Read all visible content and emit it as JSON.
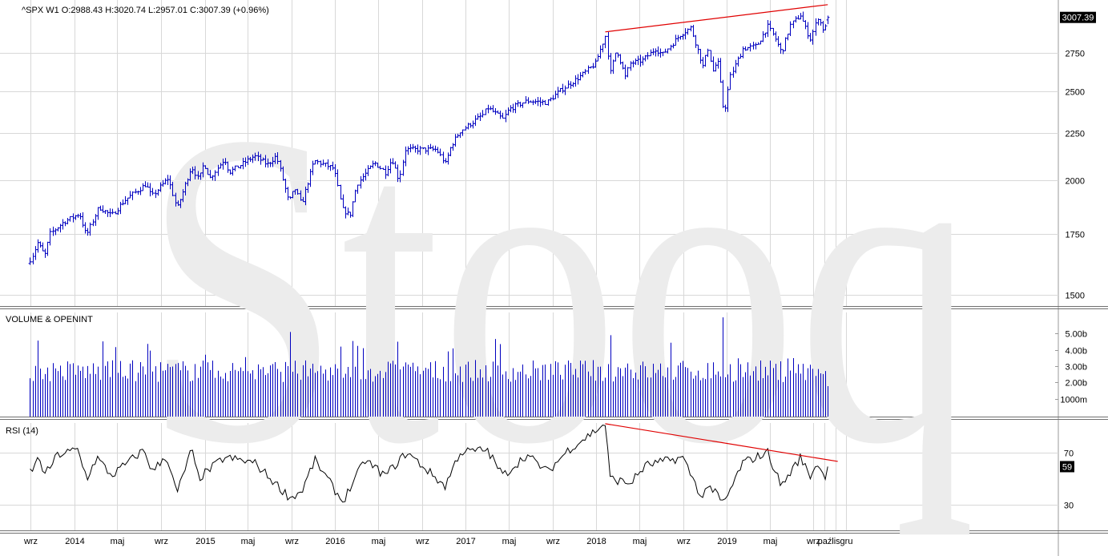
{
  "header": {
    "symbol": "^SPX",
    "interval": "W1",
    "ohlc_text": "O:2988.43  H:3020.74  L:2957.01  C:3007.39  (+0.96%)"
  },
  "watermark": "Stooq",
  "colors": {
    "price": "#0000c0",
    "volume": "#0000c0",
    "rsi": "#000000",
    "trendline": "#e00000",
    "grid": "#d8d8d8"
  },
  "chart_data": [
    {
      "type": "ohlc",
      "panel": "price",
      "title": "^SPX W1",
      "y_scale": "log",
      "ylim": [
        1480,
        3110
      ],
      "y_ticks": [
        1500,
        1750,
        2000,
        2250,
        2500,
        2750
      ],
      "last_value_label": "3007.39",
      "last": {
        "open": 2988.43,
        "high": 3020.74,
        "low": 2957.01,
        "close": 3007.39,
        "change_pct": 0.96
      },
      "weeks_start": "2013-08-30",
      "weeks_end": "2019-10-11",
      "close_anchors": [
        [
          "2013-09-01",
          1640
        ],
        [
          "2013-09-20",
          1710
        ],
        [
          "2013-10-10",
          1655
        ],
        [
          "2013-10-25",
          1750
        ],
        [
          "2013-12-01",
          1800
        ],
        [
          "2014-01-15",
          1840
        ],
        [
          "2014-02-03",
          1740
        ],
        [
          "2014-03-10",
          1870
        ],
        [
          "2014-04-15",
          1830
        ],
        [
          "2014-05-20",
          1900
        ],
        [
          "2014-07-20",
          1980
        ],
        [
          "2014-08-05",
          1920
        ],
        [
          "2014-09-20",
          2010
        ],
        [
          "2014-10-15",
          1860
        ],
        [
          "2014-11-25",
          2070
        ],
        [
          "2014-12-15",
          2000
        ],
        [
          "2014-12-29",
          2090
        ],
        [
          "2015-01-15",
          2010
        ],
        [
          "2015-02-25",
          2110
        ],
        [
          "2015-03-10",
          2040
        ],
        [
          "2015-05-20",
          2125
        ],
        [
          "2015-06-25",
          2080
        ],
        [
          "2015-07-20",
          2125
        ],
        [
          "2015-08-24",
          1890
        ],
        [
          "2015-09-10",
          1960
        ],
        [
          "2015-09-28",
          1880
        ],
        [
          "2015-11-03",
          2100
        ],
        [
          "2015-12-28",
          2060
        ],
        [
          "2016-01-20",
          1860
        ],
        [
          "2016-02-11",
          1830
        ],
        [
          "2016-03-01",
          1980
        ],
        [
          "2016-04-20",
          2090
        ],
        [
          "2016-05-20",
          2040
        ],
        [
          "2016-06-08",
          2110
        ],
        [
          "2016-06-27",
          2000
        ],
        [
          "2016-07-15",
          2160
        ],
        [
          "2016-10-10",
          2160
        ],
        [
          "2016-11-04",
          2085
        ],
        [
          "2016-11-20",
          2180
        ],
        [
          "2016-12-15",
          2260
        ],
        [
          "2017-02-20",
          2360
        ],
        [
          "2017-03-01",
          2400
        ],
        [
          "2017-04-15",
          2330
        ],
        [
          "2017-05-01",
          2390
        ],
        [
          "2017-06-20",
          2440
        ],
        [
          "2017-08-15",
          2430
        ],
        [
          "2017-09-20",
          2500
        ],
        [
          "2017-11-20",
          2600
        ],
        [
          "2017-12-29",
          2680
        ],
        [
          "2018-01-26",
          2870
        ],
        [
          "2018-02-09",
          2620
        ],
        [
          "2018-02-26",
          2780
        ],
        [
          "2018-03-23",
          2590
        ],
        [
          "2018-04-05",
          2680
        ],
        [
          "2018-05-10",
          2700
        ],
        [
          "2018-06-15",
          2780
        ],
        [
          "2018-07-05",
          2740
        ],
        [
          "2018-08-24",
          2880
        ],
        [
          "2018-09-21",
          2930
        ],
        [
          "2018-10-12",
          2770
        ],
        [
          "2018-10-26",
          2660
        ],
        [
          "2018-11-09",
          2780
        ],
        [
          "2018-11-23",
          2630
        ],
        [
          "2018-12-06",
          2700
        ],
        [
          "2018-12-24",
          2350
        ],
        [
          "2019-01-10",
          2590
        ],
        [
          "2019-02-15",
          2780
        ],
        [
          "2019-03-25",
          2800
        ],
        [
          "2019-04-26",
          2940
        ],
        [
          "2019-05-15",
          2860
        ],
        [
          "2019-06-03",
          2750
        ],
        [
          "2019-06-28",
          2950
        ],
        [
          "2019-07-26",
          3025
        ],
        [
          "2019-08-10",
          2920
        ],
        [
          "2019-08-23",
          2850
        ],
        [
          "2019-09-13",
          3007
        ],
        [
          "2019-10-01",
          2900
        ],
        [
          "2019-10-11",
          3007.39
        ]
      ],
      "trendlines": [
        {
          "from": [
            "2018-01-26",
            2900
          ],
          "to": [
            "2019-10-11",
            3105
          ]
        }
      ]
    },
    {
      "type": "bar",
      "panel": "volume",
      "title": "VOLUME & OPENINT",
      "ylim": [
        0,
        6200000000
      ],
      "y_tick_labels": [
        "1000m",
        "2.00b",
        "3.00b",
        "4.00b",
        "5.00b"
      ],
      "y_ticks": [
        1000000000,
        2000000000,
        3000000000,
        4000000000,
        5000000000
      ],
      "typical_weekly_volume": 2700000000,
      "spikes": [
        [
          "2015-08-28",
          5100000000
        ],
        [
          "2016-01-15",
          4200000000
        ],
        [
          "2016-06-24",
          4500000000
        ],
        [
          "2018-02-09",
          4900000000
        ],
        [
          "2018-12-21",
          6000000000
        ]
      ]
    },
    {
      "type": "line",
      "panel": "rsi",
      "title": "RSI (14)",
      "ylim": [
        10,
        95
      ],
      "y_ticks": [
        30,
        70
      ],
      "last_value_label": "59",
      "anchors": [
        [
          "2013-09-01",
          55
        ],
        [
          "2013-09-25",
          66
        ],
        [
          "2013-10-10",
          52
        ],
        [
          "2013-11-15",
          68
        ],
        [
          "2014-01-10",
          72
        ],
        [
          "2014-02-05",
          50
        ],
        [
          "2014-03-05",
          66
        ],
        [
          "2014-04-15",
          52
        ],
        [
          "2014-07-15",
          72
        ],
        [
          "2014-08-08",
          55
        ],
        [
          "2014-09-15",
          68
        ],
        [
          "2014-10-15",
          38
        ],
        [
          "2014-11-25",
          72
        ],
        [
          "2014-12-15",
          50
        ],
        [
          "2015-02-25",
          66
        ],
        [
          "2015-05-20",
          62
        ],
        [
          "2015-08-28",
          35
        ],
        [
          "2015-09-30",
          40
        ],
        [
          "2015-11-05",
          64
        ],
        [
          "2016-01-22",
          32
        ],
        [
          "2016-03-25",
          64
        ],
        [
          "2016-05-20",
          52
        ],
        [
          "2016-07-20",
          70
        ],
        [
          "2016-11-04",
          44
        ],
        [
          "2016-12-15",
          70
        ],
        [
          "2017-03-01",
          72
        ],
        [
          "2017-04-15",
          52
        ],
        [
          "2017-06-20",
          68
        ],
        [
          "2017-08-18",
          55
        ],
        [
          "2017-10-15",
          72
        ],
        [
          "2018-01-26",
          92
        ],
        [
          "2018-02-09",
          50
        ],
        [
          "2018-04-05",
          46
        ],
        [
          "2018-05-20",
          60
        ],
        [
          "2018-08-31",
          66
        ],
        [
          "2018-10-26",
          34
        ],
        [
          "2018-11-09",
          46
        ],
        [
          "2018-12-24",
          30
        ],
        [
          "2019-02-15",
          62
        ],
        [
          "2019-04-26",
          70
        ],
        [
          "2019-06-03",
          44
        ],
        [
          "2019-07-26",
          66
        ],
        [
          "2019-08-23",
          52
        ],
        [
          "2019-09-13",
          62
        ],
        [
          "2019-10-01",
          50
        ],
        [
          "2019-10-11",
          59
        ]
      ],
      "trendlines": [
        {
          "from": [
            "2018-01-26",
            92
          ],
          "to": [
            "2019-11-08",
            63
          ]
        }
      ]
    }
  ],
  "x_axis": {
    "ticks": [
      {
        "date": "2013-09-01",
        "label": "wrz"
      },
      {
        "date": "2014-01-01",
        "label": "2014"
      },
      {
        "date": "2014-05-01",
        "label": "maj"
      },
      {
        "date": "2014-09-01",
        "label": "wrz"
      },
      {
        "date": "2015-01-01",
        "label": "2015"
      },
      {
        "date": "2015-05-01",
        "label": "maj"
      },
      {
        "date": "2015-09-01",
        "label": "wrz"
      },
      {
        "date": "2016-01-01",
        "label": "2016"
      },
      {
        "date": "2016-05-01",
        "label": "maj"
      },
      {
        "date": "2016-09-01",
        "label": "wrz"
      },
      {
        "date": "2017-01-01",
        "label": "2017"
      },
      {
        "date": "2017-05-01",
        "label": "maj"
      },
      {
        "date": "2017-09-01",
        "label": "wrz"
      },
      {
        "date": "2018-01-01",
        "label": "2018"
      },
      {
        "date": "2018-05-01",
        "label": "maj"
      },
      {
        "date": "2018-09-01",
        "label": "wrz"
      },
      {
        "date": "2019-01-01",
        "label": "2019"
      },
      {
        "date": "2019-05-01",
        "label": "maj"
      },
      {
        "date": "2019-09-01",
        "label": "wrz"
      },
      {
        "date": "2019-10-01",
        "label": "paź"
      },
      {
        "date": "2019-11-01",
        "label": "lis"
      },
      {
        "date": "2019-12-01",
        "label": "gru"
      }
    ]
  }
}
